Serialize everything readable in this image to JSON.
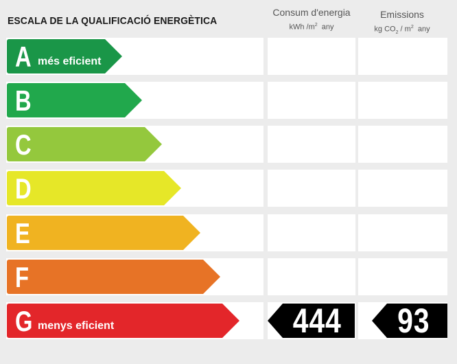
{
  "title": "ESCALA DE LA QUALIFICACIÓ ENERGÈTICA",
  "consum": {
    "label": "Consum d'energia",
    "unit_pre": "kWh /m",
    "unit_sup": "2",
    "unit_post": "any"
  },
  "emissions": {
    "label": "Emissions",
    "unit_pre": "kg CO",
    "unit_sub": "2",
    "unit_mid": "/ m",
    "unit_sup": "2",
    "unit_post": "any"
  },
  "ratings": [
    {
      "letter": "A",
      "caption": "més eficient",
      "color": "#1a9648"
    },
    {
      "letter": "B",
      "caption": "",
      "color": "#21a84c"
    },
    {
      "letter": "C",
      "caption": "",
      "color": "#94c83d"
    },
    {
      "letter": "D",
      "caption": "",
      "color": "#e6e728"
    },
    {
      "letter": "E",
      "caption": "",
      "color": "#f0b321"
    },
    {
      "letter": "F",
      "caption": "",
      "color": "#e77326"
    },
    {
      "letter": "G",
      "caption": "menys eficient",
      "color": "#e3262a"
    }
  ],
  "result": {
    "rating_index": 6,
    "consum_value": "444",
    "emissions_value": "93",
    "badge_color": "#000000"
  }
}
